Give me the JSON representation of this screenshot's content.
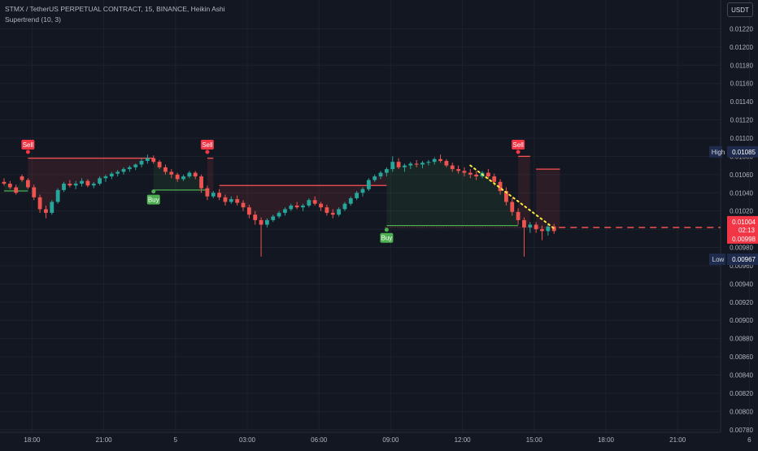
{
  "header": {
    "symbol_line": "STMX / TetherUS PERPETUAL CONTRACT, 15, BINANCE, Heikin Ashi",
    "indicator_line": "Supertrend (10, 3)"
  },
  "toolbar": {
    "unit_label": "USDT"
  },
  "colors": {
    "background": "#131722",
    "grid": "#1e222d",
    "up": "#26a69a",
    "down": "#ef5350",
    "supertrend_up": "#4caf50",
    "supertrend_down": "#ff5252",
    "trend_dots": "#ffeb3b",
    "high_tag": "#1f2b4d",
    "low_tag": "#1f2b4d"
  },
  "chart_data": {
    "type": "candlestick",
    "chart_style": "Heikin Ashi",
    "interval": "15",
    "y_axis": {
      "min": 0.0077,
      "max": 0.0124,
      "ticks": [
        "0.01220",
        "0.01200",
        "0.01180",
        "0.01160",
        "0.01140",
        "0.01120",
        "0.01100",
        "0.01080",
        "0.01060",
        "0.01040",
        "0.01020",
        "0.01000",
        "0.00980",
        "0.00960",
        "0.00940",
        "0.00920",
        "0.00900",
        "0.00880",
        "0.00860",
        "0.00840",
        "0.00820",
        "0.00800",
        "0.00780"
      ]
    },
    "x_axis": {
      "ticks": [
        {
          "label": "18:00",
          "index": 4
        },
        {
          "label": "21:00",
          "index": 16
        },
        {
          "label": "5",
          "index": 28
        },
        {
          "label": "03:00",
          "index": 40
        },
        {
          "label": "06:00",
          "index": 52
        },
        {
          "label": "09:00",
          "index": 64
        },
        {
          "label": "12:00",
          "index": 76
        },
        {
          "label": "15:00",
          "index": 88
        },
        {
          "label": "18:00",
          "index": 100
        },
        {
          "label": "21:00",
          "index": 112
        },
        {
          "label": "6",
          "index": 124
        }
      ],
      "total_slots": 132
    },
    "candles": [
      [
        0.01052,
        0.01056,
        0.01048,
        0.0105
      ],
      [
        0.0105,
        0.01053,
        0.01044,
        0.01046
      ],
      [
        0.01046,
        0.01049,
        0.01038,
        0.0104
      ],
      [
        0.01058,
        0.0106,
        0.01052,
        0.01054
      ],
      [
        0.01054,
        0.01056,
        0.01044,
        0.01046
      ],
      [
        0.01046,
        0.01049,
        0.01032,
        0.01035
      ],
      [
        0.01035,
        0.01038,
        0.01018,
        0.01022
      ],
      [
        0.01022,
        0.01026,
        0.01012,
        0.01018
      ],
      [
        0.01018,
        0.01032,
        0.01016,
        0.0103
      ],
      [
        0.0103,
        0.01045,
        0.01028,
        0.01043
      ],
      [
        0.01043,
        0.01052,
        0.01041,
        0.0105
      ],
      [
        0.0105,
        0.01054,
        0.01046,
        0.01048
      ],
      [
        0.01048,
        0.01053,
        0.01044,
        0.0105
      ],
      [
        0.0105,
        0.01056,
        0.01047,
        0.01053
      ],
      [
        0.01053,
        0.01055,
        0.01046,
        0.01048
      ],
      [
        0.01048,
        0.01052,
        0.01045,
        0.0105
      ],
      [
        0.0105,
        0.01058,
        0.01048,
        0.01056
      ],
      [
        0.01056,
        0.0106,
        0.01052,
        0.01058
      ],
      [
        0.01058,
        0.01063,
        0.01055,
        0.01061
      ],
      [
        0.01061,
        0.01065,
        0.01058,
        0.01063
      ],
      [
        0.01063,
        0.01068,
        0.0106,
        0.01066
      ],
      [
        0.01066,
        0.0107,
        0.01063,
        0.01068
      ],
      [
        0.01068,
        0.01072,
        0.01065,
        0.01071
      ],
      [
        0.01071,
        0.01078,
        0.01068,
        0.01075
      ],
      [
        0.01075,
        0.01082,
        0.01072,
        0.01078
      ],
      [
        0.01078,
        0.01081,
        0.01072,
        0.01074
      ],
      [
        0.01074,
        0.01076,
        0.01066,
        0.01068
      ],
      [
        0.01068,
        0.01071,
        0.0106,
        0.01063
      ],
      [
        0.01063,
        0.01066,
        0.01056,
        0.0106
      ],
      [
        0.0106,
        0.01062,
        0.01052,
        0.01055
      ],
      [
        0.01055,
        0.0106,
        0.01053,
        0.01058
      ],
      [
        0.01058,
        0.01064,
        0.01056,
        0.01062
      ],
      [
        0.01062,
        0.01064,
        0.01055,
        0.01058
      ],
      [
        0.01058,
        0.0106,
        0.0104,
        0.01045
      ],
      [
        0.01045,
        0.01048,
        0.01032,
        0.01036
      ],
      [
        0.01036,
        0.01042,
        0.01034,
        0.0104
      ],
      [
        0.0104,
        0.01044,
        0.01032,
        0.01035
      ],
      [
        0.01035,
        0.01038,
        0.01026,
        0.0103
      ],
      [
        0.0103,
        0.01036,
        0.01028,
        0.01033
      ],
      [
        0.01033,
        0.01037,
        0.01026,
        0.01029
      ],
      [
        0.01029,
        0.01032,
        0.0102,
        0.01024
      ],
      [
        0.01024,
        0.01027,
        0.01012,
        0.01016
      ],
      [
        0.01016,
        0.0102,
        0.01005,
        0.0101
      ],
      [
        0.0101,
        0.01013,
        0.0097,
        0.01005
      ],
      [
        0.01005,
        0.01012,
        0.01002,
        0.0101
      ],
      [
        0.0101,
        0.01016,
        0.01008,
        0.01014
      ],
      [
        0.01014,
        0.0102,
        0.01012,
        0.01018
      ],
      [
        0.01018,
        0.01024,
        0.01015,
        0.01022
      ],
      [
        0.01022,
        0.01028,
        0.0102,
        0.01026
      ],
      [
        0.01026,
        0.0103,
        0.01022,
        0.01024
      ],
      [
        0.01024,
        0.01028,
        0.0102,
        0.01026
      ],
      [
        0.01026,
        0.01034,
        0.01024,
        0.01032
      ],
      [
        0.01032,
        0.01036,
        0.01026,
        0.01028
      ],
      [
        0.01028,
        0.0103,
        0.0102,
        0.01024
      ],
      [
        0.01024,
        0.01027,
        0.01015,
        0.01018
      ],
      [
        0.01018,
        0.01022,
        0.01012,
        0.01016
      ],
      [
        0.01016,
        0.01024,
        0.01014,
        0.01022
      ],
      [
        0.01022,
        0.0103,
        0.0102,
        0.01028
      ],
      [
        0.01028,
        0.01036,
        0.01026,
        0.01034
      ],
      [
        0.01034,
        0.01042,
        0.01032,
        0.0104
      ],
      [
        0.0104,
        0.01046,
        0.01036,
        0.01044
      ],
      [
        0.01044,
        0.01056,
        0.01042,
        0.01054
      ],
      [
        0.01054,
        0.0106,
        0.01052,
        0.01058
      ],
      [
        0.01058,
        0.01064,
        0.01055,
        0.01062
      ],
      [
        0.01062,
        0.01068,
        0.01058,
        0.01066
      ],
      [
        0.01066,
        0.0108,
        0.01063,
        0.01074
      ],
      [
        0.01074,
        0.01078,
        0.01066,
        0.01068
      ],
      [
        0.01068,
        0.01072,
        0.01063,
        0.0107
      ],
      [
        0.0107,
        0.01074,
        0.01066,
        0.01072
      ],
      [
        0.01072,
        0.01076,
        0.01068,
        0.01071
      ],
      [
        0.01071,
        0.01075,
        0.01067,
        0.01073
      ],
      [
        0.01073,
        0.01076,
        0.0107,
        0.01074
      ],
      [
        0.01074,
        0.01079,
        0.01071,
        0.01077
      ],
      [
        0.01077,
        0.01082,
        0.01073,
        0.01075
      ],
      [
        0.01075,
        0.01077,
        0.01068,
        0.0107
      ],
      [
        0.0107,
        0.01073,
        0.01063,
        0.01066
      ],
      [
        0.01066,
        0.0107,
        0.01061,
        0.01064
      ],
      [
        0.01064,
        0.01068,
        0.01058,
        0.01062
      ],
      [
        0.01062,
        0.01066,
        0.01056,
        0.0106
      ],
      [
        0.0106,
        0.01064,
        0.01054,
        0.01058
      ],
      [
        0.01058,
        0.01064,
        0.01056,
        0.01062
      ],
      [
        0.01062,
        0.01066,
        0.01055,
        0.01058
      ],
      [
        0.01058,
        0.01061,
        0.01048,
        0.01052
      ],
      [
        0.01052,
        0.01055,
        0.01038,
        0.01042
      ],
      [
        0.01042,
        0.01046,
        0.01026,
        0.0103
      ],
      [
        0.0103,
        0.01034,
        0.01015,
        0.01019
      ],
      [
        0.01019,
        0.01023,
        0.01005,
        0.0101
      ],
      [
        0.0101,
        0.01013,
        0.0097,
        0.01002
      ],
      [
        0.01002,
        0.01008,
        0.00996,
        0.01005
      ],
      [
        0.01005,
        0.01008,
        0.00996,
        0.01
      ],
      [
        0.01,
        0.01004,
        0.00988,
        0.00998
      ],
      [
        0.00998,
        0.01005,
        0.00993,
        0.01003
      ],
      [
        0.01003,
        0.01006,
        0.00995,
        0.00998
      ]
    ],
    "supertrend": {
      "down_segments": [
        {
          "from": 4,
          "to": 25,
          "value": 0.01078
        },
        {
          "from": 34,
          "to": 35,
          "value": 0.01078
        },
        {
          "from": 36,
          "to": 64,
          "value": 0.01048
        },
        {
          "from": 86,
          "to": 88,
          "value": 0.0108
        },
        {
          "from": 89,
          "to": 93,
          "value": 0.01066
        }
      ],
      "up_segments": [
        {
          "from": 0,
          "to": 4,
          "value": 0.01042
        },
        {
          "from": 25,
          "to": 34,
          "value": 0.01043
        },
        {
          "from": 64,
          "to": 86,
          "value": 0.01004
        }
      ]
    },
    "signals": [
      {
        "label": "Sell",
        "index": 4,
        "price": 0.01092
      },
      {
        "label": "Buy",
        "index": 25,
        "price": 0.01037
      },
      {
        "label": "Sell",
        "index": 34,
        "price": 0.01092
      },
      {
        "label": "Buy",
        "index": 64,
        "price": 0.00995
      },
      {
        "label": "Sell",
        "index": 86,
        "price": 0.01092
      }
    ],
    "trendline": {
      "from": [
        78,
        0.0107
      ],
      "to": [
        92,
        0.01001
      ]
    },
    "price_labels": {
      "high": {
        "label": "High",
        "value": "0.01085"
      },
      "current": {
        "value": "0.01004",
        "countdown": "02:13"
      },
      "bid": {
        "value": "0.00998"
      },
      "low": {
        "label": "Low",
        "value": "0.00967"
      }
    },
    "current_price": 0.01002
  }
}
